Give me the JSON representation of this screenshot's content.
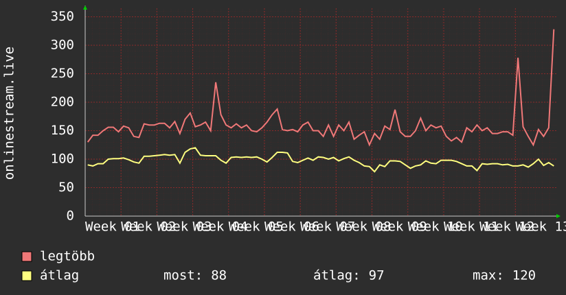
{
  "chart_data": {
    "type": "line",
    "y_label": "onlinestream.live",
    "xlim": [
      0,
      92
    ],
    "xticks": [
      {
        "value": 0,
        "label": "Week 01"
      },
      {
        "value": 7,
        "label": "Week 02"
      },
      {
        "value": 14,
        "label": "Week 03"
      },
      {
        "value": 21,
        "label": "Week 04"
      },
      {
        "value": 28,
        "label": "Week 05"
      },
      {
        "value": 35,
        "label": "Week 06"
      },
      {
        "value": 42,
        "label": "Week 07"
      },
      {
        "value": 49,
        "label": "Week 08"
      },
      {
        "value": 56,
        "label": "Week 09"
      },
      {
        "value": 63,
        "label": "Week 10"
      },
      {
        "value": 70,
        "label": "Week 11"
      },
      {
        "value": 77,
        "label": "Week 12"
      },
      {
        "value": 84,
        "label": "Week 13"
      }
    ],
    "ylim": [
      0,
      365
    ],
    "yticks": [
      0,
      50,
      100,
      150,
      200,
      250,
      300,
      350
    ],
    "grid": true,
    "series": [
      {
        "name": "legtöbb",
        "color": "#f07878",
        "values": [
          130,
          142,
          142,
          150,
          156,
          156,
          148,
          158,
          155,
          140,
          138,
          162,
          160,
          160,
          163,
          163,
          155,
          166,
          145,
          170,
          181,
          157,
          160,
          165,
          150,
          235,
          178,
          160,
          155,
          162,
          155,
          160,
          150,
          148,
          155,
          165,
          178,
          188,
          152,
          150,
          152,
          148,
          160,
          165,
          150,
          150,
          140,
          160,
          140,
          160,
          150,
          165,
          135,
          142,
          148,
          125,
          145,
          135,
          158,
          152,
          187,
          148,
          140,
          140,
          150,
          172,
          150,
          160,
          155,
          158,
          140,
          132,
          138,
          130,
          155,
          148,
          160,
          150,
          155,
          145,
          145,
          148,
          148,
          142,
          278,
          157,
          140,
          125,
          152,
          140,
          155,
          328
        ]
      },
      {
        "name": "átlag",
        "color": "#ffff80",
        "values": [
          90,
          88,
          92,
          92,
          100,
          101,
          101,
          102,
          99,
          95,
          93,
          105,
          105,
          106,
          107,
          108,
          107,
          108,
          93,
          112,
          118,
          120,
          107,
          106,
          106,
          106,
          98,
          93,
          103,
          104,
          103,
          104,
          103,
          104,
          100,
          95,
          103,
          112,
          112,
          111,
          96,
          94,
          98,
          102,
          98,
          104,
          103,
          100,
          103,
          97,
          101,
          104,
          98,
          94,
          88,
          87,
          78,
          90,
          87,
          97,
          97,
          96,
          90,
          84,
          88,
          90,
          97,
          93,
          92,
          98,
          98,
          98,
          96,
          92,
          88,
          88,
          80,
          92,
          91,
          92,
          92,
          90,
          91,
          88,
          88,
          90,
          86,
          92,
          100,
          89,
          94,
          88
        ]
      }
    ],
    "stats": [
      {
        "label": "most:",
        "value": 88
      },
      {
        "label": "átlag:",
        "value": 97
      },
      {
        "label": "max:",
        "value": 120
      }
    ]
  }
}
